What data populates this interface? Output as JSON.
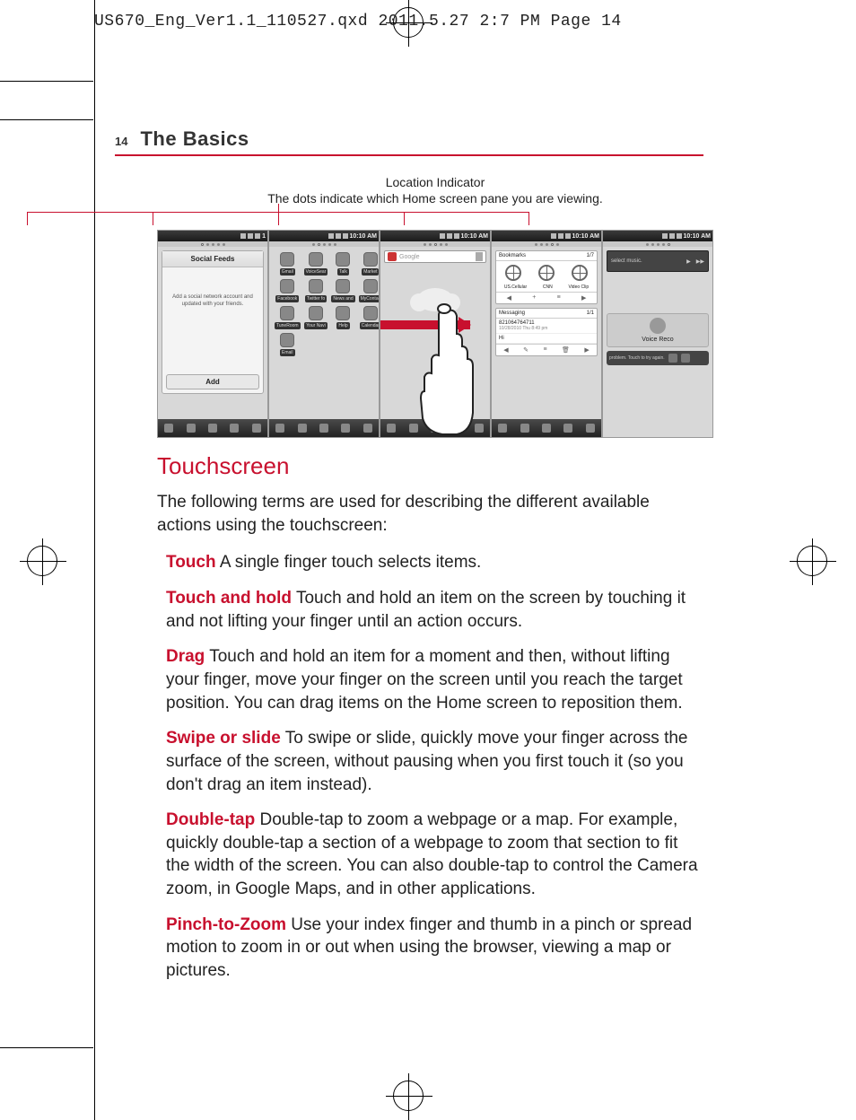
{
  "header_line": "US670_Eng_Ver1.1_110527.qxd  2011.5.27  2:7 PM  Page 14",
  "page_number": "14",
  "section_title": "The Basics",
  "figure": {
    "indicator_title": "Location Indicator",
    "indicator_sub": "The dots indicate which Home screen pane you are viewing.",
    "accent_color": "#c8102e",
    "screens": {
      "time": "10:10 AM",
      "s1": {
        "panel_title": "Social Feeds",
        "panel_text": "Add a social network account and updated with your friends.",
        "add_label": "Add",
        "status_right": "1"
      },
      "s2": {
        "apps": [
          "Gmail",
          "VoiceSear",
          "Talk",
          "Market",
          "Facebook",
          "Twitter fo",
          "News and",
          "MyContac",
          "TuneRoom",
          "Your Navi",
          "Help",
          "Calendar",
          "Email"
        ]
      },
      "s3": {
        "search_placeholder": "Google"
      },
      "s4": {
        "bookmarks_label": "Bookmarks",
        "bookmarks_count": "1/7",
        "globe_labels": [
          "US.Cellular",
          "CNN",
          "Video Clip"
        ],
        "msg_label": "Messaging",
        "msg_count": "1/1",
        "msg_number": "821064764711",
        "msg_date": "10/28/2010 Thu 8:49 pm",
        "msg_preview": "Hi"
      },
      "s5": {
        "music_label": "select music.",
        "voice_label": "Voice Reco",
        "problem_text": "problem. Touch to try again."
      }
    }
  },
  "h2": "Touchscreen",
  "intro": "The following terms are used for describing the different available actions using the touchscreen:",
  "terms": [
    {
      "name": "Touch",
      "desc": "A single finger touch selects items."
    },
    {
      "name": "Touch and hold",
      "desc": "Touch and hold an item on the screen by touching it and not lifting your finger until an action occurs."
    },
    {
      "name": "Drag",
      "desc": "Touch and hold an item for a moment and then, without lifting your finger, move your finger on the screen until you reach the target position. You can drag items on the Home screen to reposition them."
    },
    {
      "name": "Swipe or slide",
      "desc": "To swipe or slide, quickly move your finger across the surface of the screen, without pausing when you first touch it (so you don't drag an item instead)."
    },
    {
      "name": "Double-tap",
      "desc": "Double-tap to zoom a webpage or a map. For example, quickly double-tap a section of a webpage to zoom that section to fit the width of the screen. You can also double-tap to control the Camera zoom, in Google Maps, and in other applications."
    },
    {
      "name": "Pinch-to-Zoom",
      "desc": "Use your index finger and thumb in a pinch or spread motion to zoom in or out when using the browser, viewing a map or pictures."
    }
  ]
}
